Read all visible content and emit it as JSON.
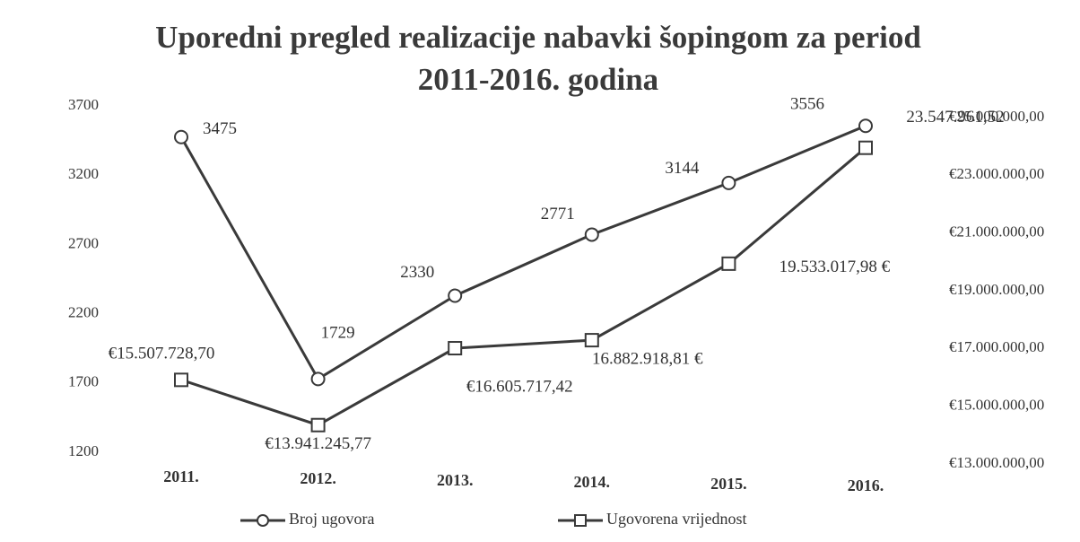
{
  "chart_data": {
    "type": "line",
    "title": [
      "Uporedni pregled realizacije nabavki  šopingom za period",
      "2011-2016. godina"
    ],
    "categories": [
      "2011.",
      "2012.",
      "2013.",
      "2014.",
      "2015.",
      "2016."
    ],
    "series": [
      {
        "name": "Broj ugovora",
        "color": "#3a3a3a",
        "marker": "circle",
        "values": [
          3475,
          1729,
          2330,
          2771,
          3144,
          3556
        ]
      },
      {
        "name": "Ugovorena vrijednost",
        "color": "#3a3a3a",
        "marker": "square",
        "axis": "y2",
        "values": [
          15507728.7,
          13941245.77,
          16605717.42,
          16882918.81,
          19533017.98,
          23547961.52
        ],
        "value_labels": [
          "€15.507.728,70",
          "€13.941.245,77",
          "€16.605.717,42",
          "16.882.918,81 €",
          "19.533.017,98 €",
          "23.547.961,52"
        ]
      }
    ],
    "ylim": [
      1200,
      3700
    ],
    "yticks": [
      1200,
      1700,
      2200,
      2700,
      3200,
      3700
    ],
    "y2lim": [
      13000000,
      25000000
    ],
    "y2ticks": [
      {
        "value": 13000000,
        "label": "€13.000.000,00"
      },
      {
        "value": 15000000,
        "label": "€15.000.000,00"
      },
      {
        "value": 17000000,
        "label": "€17.000.000,00"
      },
      {
        "value": 19000000,
        "label": "€19.000.000,00"
      },
      {
        "value": 21000000,
        "label": "€21.000.000,00"
      },
      {
        "value": 23000000,
        "label": "€23.000.000,00"
      },
      {
        "value": 25000000,
        "label": "€25.000.000,00"
      }
    ],
    "grid": false,
    "legend": "bottom"
  }
}
